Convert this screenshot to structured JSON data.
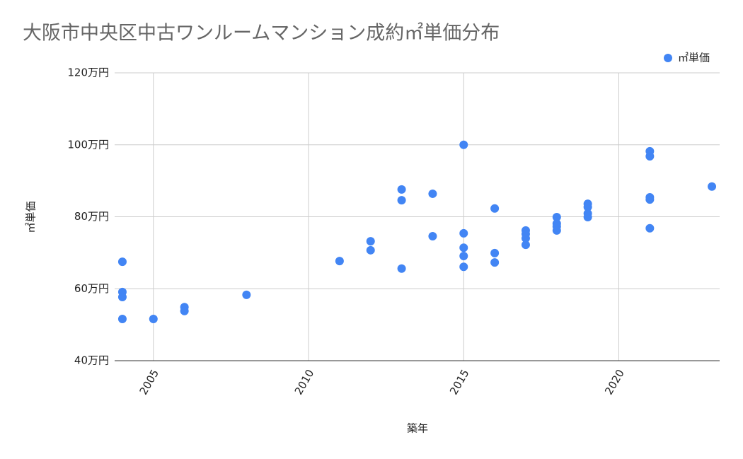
{
  "chart_data": {
    "type": "scatter",
    "title": "大阪市中央区中古ワンルームマンション成約㎡単価分布",
    "x_label": "築年",
    "y_label": "㎡単価",
    "legend": "top-right",
    "grid": true,
    "series": [
      {
        "name": "㎡単価",
        "color": "#4285f4",
        "x": [
          2004,
          2004,
          2004,
          2004,
          2005,
          2006,
          2006,
          2008,
          2011,
          2012,
          2012,
          2013,
          2013,
          2013,
          2014,
          2014,
          2015,
          2015,
          2015,
          2015,
          2015,
          2016,
          2016,
          2016,
          2017,
          2017,
          2017,
          2017,
          2018,
          2018,
          2018,
          2018,
          2019,
          2019,
          2019,
          2019,
          2021,
          2021,
          2021,
          2021,
          2021,
          2023
        ],
        "values": [
          67.5,
          59.1,
          57.7,
          51.6,
          51.6,
          54.9,
          53.8,
          58.3,
          67.7,
          73.2,
          70.7,
          87.6,
          84.6,
          65.6,
          86.4,
          74.6,
          100,
          75.4,
          71.4,
          69.1,
          66.1,
          82.3,
          69.9,
          67.3,
          76.2,
          75.2,
          74.0,
          72.2,
          79.9,
          78.1,
          77.3,
          76.2,
          83.6,
          82.7,
          80.9,
          79.9,
          98.2,
          96.8,
          85.4,
          84.8,
          76.8,
          88.4
        ]
      }
    ],
    "xlim": [
      2003.75,
      2023.25
    ],
    "xticks": [
      2005,
      2010,
      2015,
      2020
    ],
    "ylim": [
      40,
      120
    ],
    "yticks": [
      {
        "value": 40,
        "label": "40万円"
      },
      {
        "value": 60,
        "label": "60万円"
      },
      {
        "value": 80,
        "label": "80万円"
      },
      {
        "value": 100,
        "label": "100万円"
      },
      {
        "value": 120,
        "label": "120万円"
      }
    ]
  }
}
